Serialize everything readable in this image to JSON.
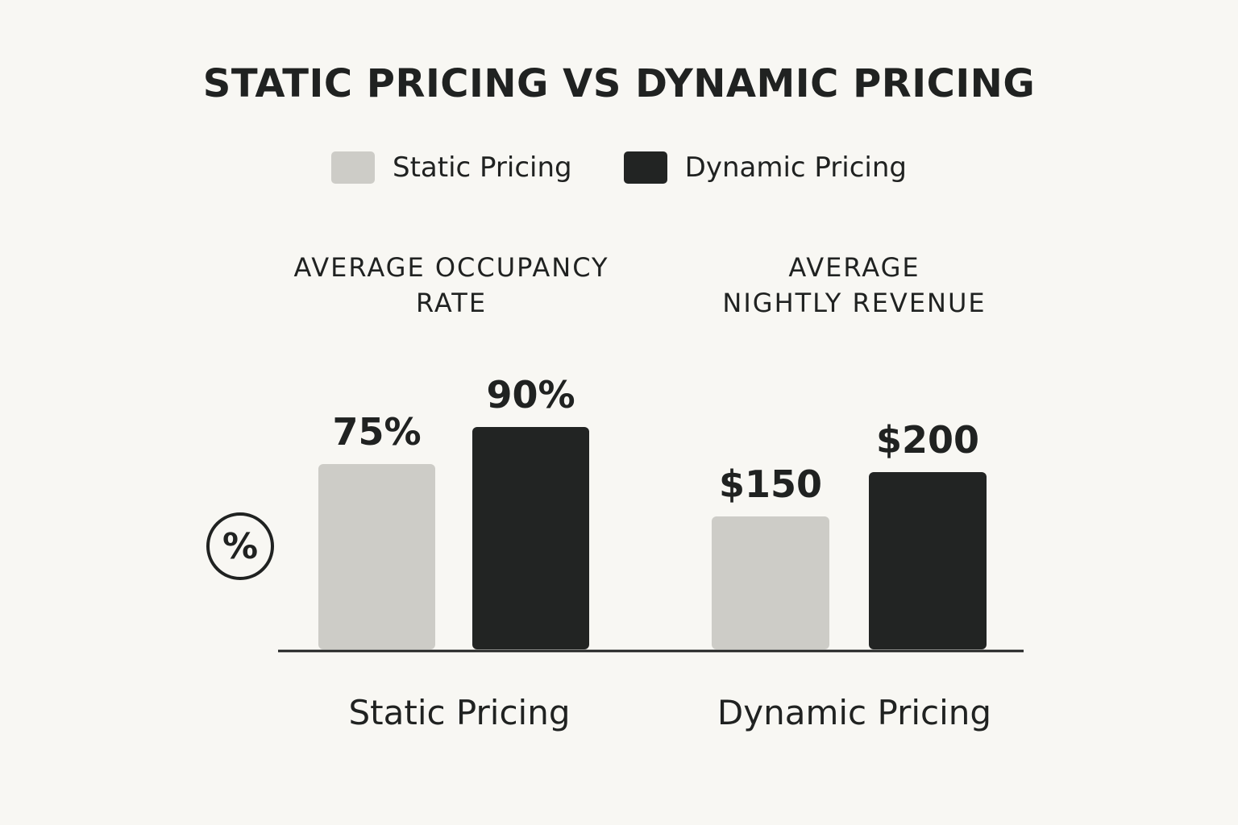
{
  "chart_data": {
    "type": "bar",
    "title": "STATIC PRICING VS DYNAMIC PRICING",
    "legend": {
      "placement": "top-center",
      "entries": [
        {
          "name": "Static Pricing",
          "color": "#cdccc7"
        },
        {
          "name": "Dynamic Pricing",
          "color": "#222423"
        }
      ]
    },
    "groups": [
      {
        "title": "AVERAGE OCCUPANCY\nRATE",
        "x_label": "Static Pricing",
        "icon": "percent-icon",
        "icon_text": "%",
        "bars": [
          {
            "series": "Static Pricing",
            "value": 75,
            "label": "75%"
          },
          {
            "series": "Dynamic Pricing",
            "value": 90,
            "label": "90%"
          }
        ]
      },
      {
        "title": "AVERAGE\nNIGHTLY REVENUE",
        "x_label": "Dynamic Pricing",
        "bars": [
          {
            "series": "Static Pricing",
            "value": 150,
            "label": "$150"
          },
          {
            "series": "Dynamic Pricing",
            "value": 200,
            "label": "$200"
          }
        ]
      }
    ],
    "grid": false
  }
}
